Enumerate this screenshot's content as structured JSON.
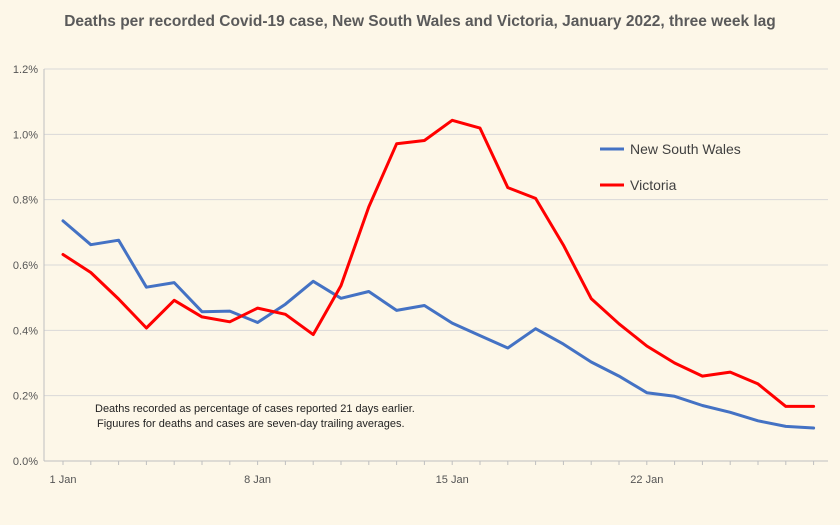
{
  "chart_data": {
    "type": "line",
    "title": "Deaths per recorded Covid-19 case, New South Wales and Victoria, January 2022, three week lag",
    "xlabel": "",
    "ylabel": "",
    "x": [
      1,
      2,
      3,
      4,
      5,
      6,
      7,
      8,
      9,
      10,
      11,
      12,
      13,
      14,
      15,
      16,
      17,
      18,
      19,
      20,
      21,
      22,
      23,
      24,
      25,
      26,
      27,
      28
    ],
    "x_tick_labels": [
      {
        "x": 1,
        "label": "1 Jan"
      },
      {
        "x": 8,
        "label": "8 Jan"
      },
      {
        "x": 15,
        "label": "15 Jan"
      },
      {
        "x": 22,
        "label": "22 Jan"
      }
    ],
    "ylim": [
      0,
      1.2
    ],
    "y_ticks": [
      0,
      0.2,
      0.4,
      0.6,
      0.8,
      1.0,
      1.2
    ],
    "y_tick_labels": [
      "0.0%",
      "0.2%",
      "0.4%",
      "0.6%",
      "0.8%",
      "1.0%",
      "1.2%"
    ],
    "grid": "horizontal",
    "legend_position": "right",
    "series": [
      {
        "name": "New South Wales",
        "color": "#4472c4",
        "values": [
          0.735,
          0.662,
          0.676,
          0.532,
          0.546,
          0.457,
          0.459,
          0.424,
          0.48,
          0.55,
          0.498,
          0.519,
          0.461,
          0.476,
          0.422,
          0.384,
          0.346,
          0.405,
          0.358,
          0.303,
          0.26,
          0.209,
          0.198,
          0.17,
          0.149,
          0.123,
          0.106,
          0.101
        ]
      },
      {
        "name": "Victoria",
        "color": "#ff0000",
        "values": [
          0.632,
          0.577,
          0.496,
          0.407,
          0.492,
          0.441,
          0.426,
          0.468,
          0.449,
          0.387,
          0.537,
          0.778,
          0.971,
          0.981,
          1.043,
          1.019,
          0.837,
          0.804,
          0.661,
          0.497,
          0.42,
          0.352,
          0.3,
          0.26,
          0.272,
          0.236,
          0.167,
          0.167
        ]
      }
    ],
    "annotation": [
      "Deaths recorded as percentage of cases reported 21 days earlier.",
      "Figuures for deaths and cases are seven-day trailing averages."
    ]
  }
}
